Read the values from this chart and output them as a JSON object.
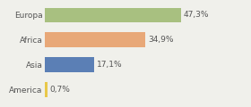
{
  "categories": [
    "America",
    "Asia",
    "Africa",
    "Europa"
  ],
  "values": [
    0.7,
    17.1,
    34.9,
    47.3
  ],
  "labels": [
    "0,7%",
    "17,1%",
    "34,9%",
    "47,3%"
  ],
  "bar_colors": [
    "#e8c84a",
    "#5b7fb5",
    "#e8a878",
    "#a8c080"
  ],
  "background_color": "#f0f0eb",
  "xlim": [
    0,
    70
  ],
  "bar_height": 0.6,
  "label_fontsize": 6.5,
  "tick_fontsize": 6.5,
  "figsize": [
    2.8,
    1.2
  ],
  "dpi": 100
}
